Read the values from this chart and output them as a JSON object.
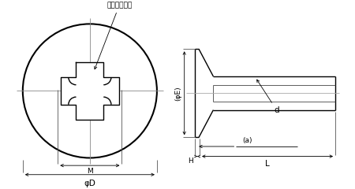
{
  "bg_color": "#ffffff",
  "line_color": "#000000",
  "lw_thin": 0.6,
  "lw_med": 1.0,
  "lw_thick": 1.5,
  "label_cross": "十字穴＃０番",
  "label_phiD": "φD",
  "label_M": "M",
  "label_phiE": "(φE)",
  "label_a": "(a)",
  "label_H": "H",
  "label_L": "L",
  "label_d": "d",
  "fs": 7.5,
  "fs_sm": 6.5
}
